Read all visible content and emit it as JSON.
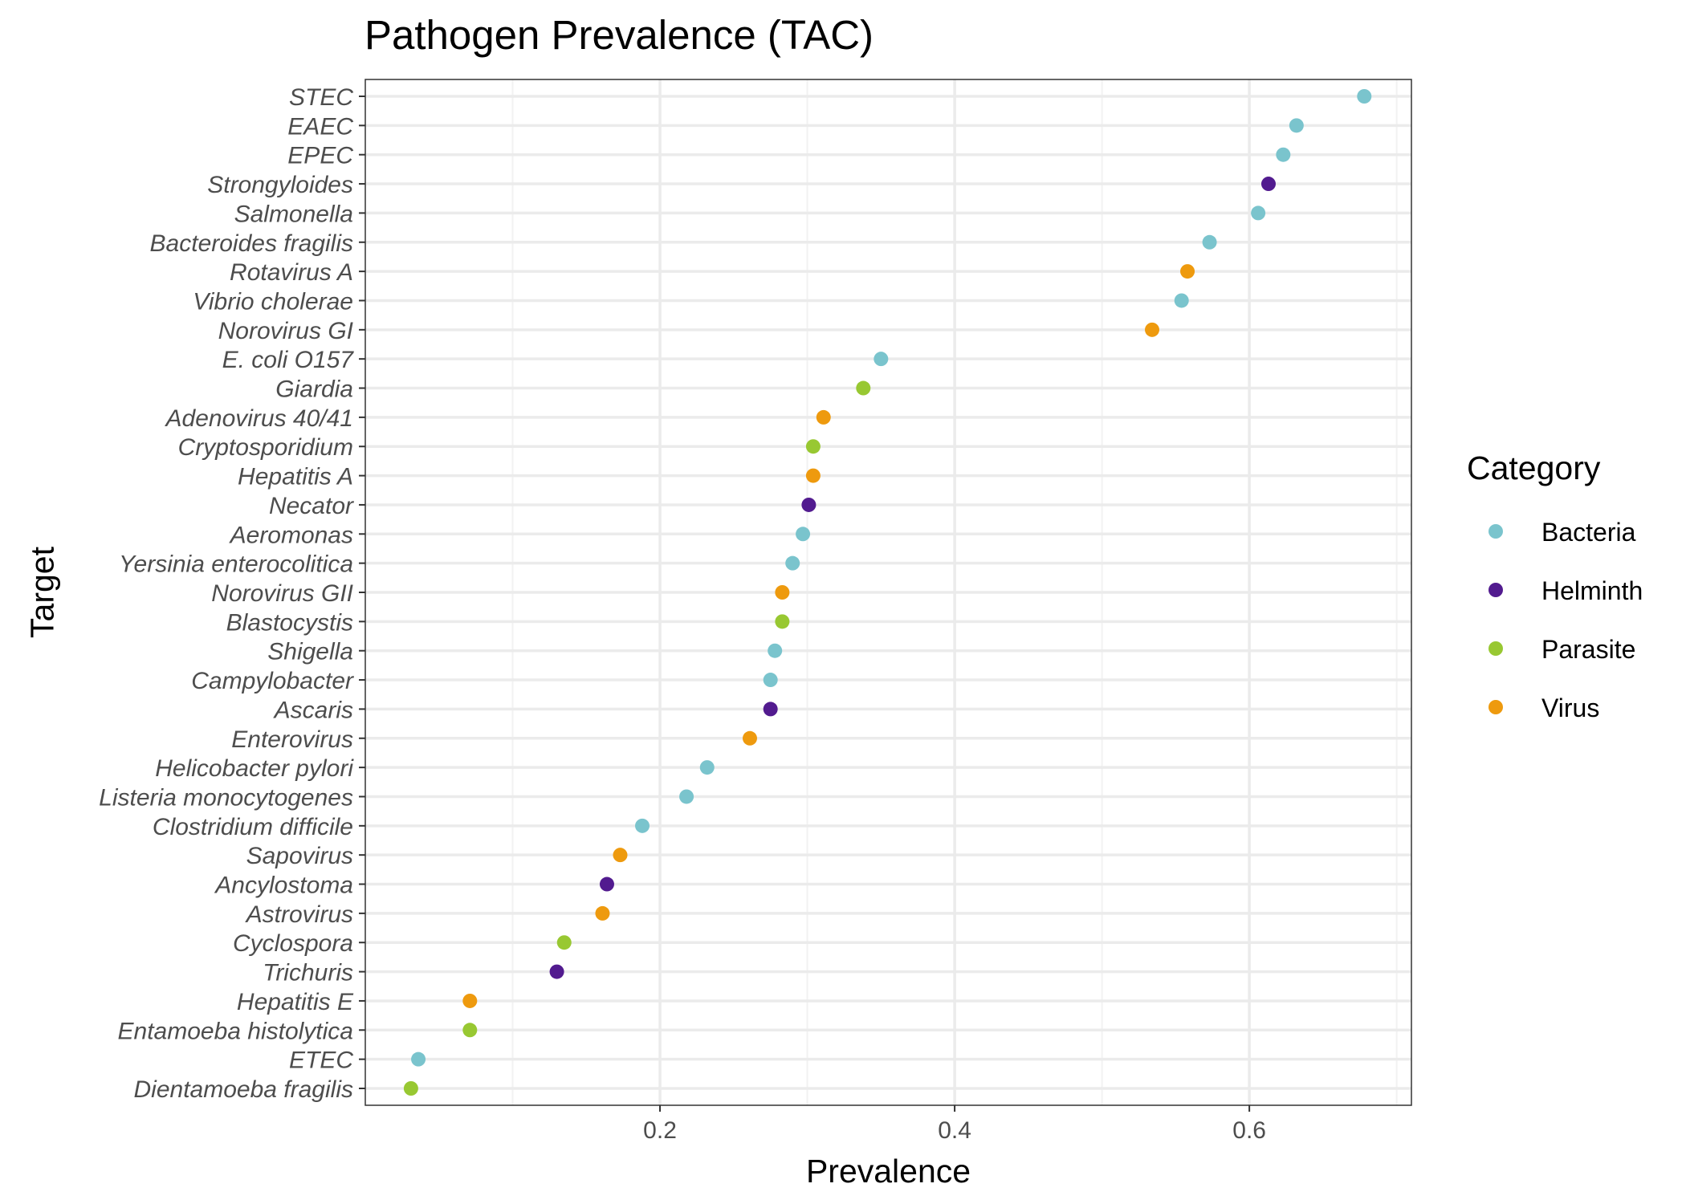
{
  "chart_data": {
    "type": "scatter",
    "title": "Pathogen Prevalence (TAC)",
    "xlabel": "Prevalence",
    "ylabel": "Target",
    "xlim": [
      0.0,
      0.71
    ],
    "xticks": [
      0.2,
      0.4,
      0.6
    ],
    "xtick_labels": [
      "0.2",
      "0.4",
      "0.6"
    ],
    "grid": true,
    "legend": {
      "title": "Category",
      "placement": "right",
      "items": [
        {
          "label": "Bacteria",
          "color": "#7ac4cd"
        },
        {
          "label": "Helminth",
          "color": "#521b8f"
        },
        {
          "label": "Parasite",
          "color": "#98c832"
        },
        {
          "label": "Virus",
          "color": "#ee9a0e"
        }
      ]
    },
    "points": [
      {
        "target": "STEC",
        "prevalence": 0.678,
        "category": "Bacteria"
      },
      {
        "target": "EAEC",
        "prevalence": 0.632,
        "category": "Bacteria"
      },
      {
        "target": "EPEC",
        "prevalence": 0.623,
        "category": "Bacteria"
      },
      {
        "target": "Strongyloides",
        "prevalence": 0.613,
        "category": "Helminth"
      },
      {
        "target": "Salmonella",
        "prevalence": 0.606,
        "category": "Bacteria"
      },
      {
        "target": "Bacteroides fragilis",
        "prevalence": 0.573,
        "category": "Bacteria"
      },
      {
        "target": "Rotavirus A",
        "prevalence": 0.558,
        "category": "Virus"
      },
      {
        "target": "Vibrio cholerae",
        "prevalence": 0.554,
        "category": "Bacteria"
      },
      {
        "target": "Norovirus GI",
        "prevalence": 0.534,
        "category": "Virus"
      },
      {
        "target": "E. coli O157",
        "prevalence": 0.35,
        "category": "Bacteria"
      },
      {
        "target": "Giardia",
        "prevalence": 0.338,
        "category": "Parasite"
      },
      {
        "target": "Adenovirus 40/41",
        "prevalence": 0.311,
        "category": "Virus"
      },
      {
        "target": "Cryptosporidium",
        "prevalence": 0.304,
        "category": "Parasite"
      },
      {
        "target": "Hepatitis A",
        "prevalence": 0.304,
        "category": "Virus"
      },
      {
        "target": "Necator",
        "prevalence": 0.301,
        "category": "Helminth"
      },
      {
        "target": "Aeromonas",
        "prevalence": 0.297,
        "category": "Bacteria"
      },
      {
        "target": "Yersinia enterocolitica",
        "prevalence": 0.29,
        "category": "Bacteria"
      },
      {
        "target": "Norovirus GII",
        "prevalence": 0.283,
        "category": "Virus"
      },
      {
        "target": "Blastocystis",
        "prevalence": 0.283,
        "category": "Parasite"
      },
      {
        "target": "Shigella",
        "prevalence": 0.278,
        "category": "Bacteria"
      },
      {
        "target": "Campylobacter",
        "prevalence": 0.275,
        "category": "Bacteria"
      },
      {
        "target": "Ascaris",
        "prevalence": 0.275,
        "category": "Helminth"
      },
      {
        "target": "Enterovirus",
        "prevalence": 0.261,
        "category": "Virus"
      },
      {
        "target": "Helicobacter pylori",
        "prevalence": 0.232,
        "category": "Bacteria"
      },
      {
        "target": "Listeria monocytogenes",
        "prevalence": 0.218,
        "category": "Bacteria"
      },
      {
        "target": "Clostridium difficile",
        "prevalence": 0.188,
        "category": "Bacteria"
      },
      {
        "target": "Sapovirus",
        "prevalence": 0.173,
        "category": "Virus"
      },
      {
        "target": "Ancylostoma",
        "prevalence": 0.164,
        "category": "Helminth"
      },
      {
        "target": "Astrovirus",
        "prevalence": 0.161,
        "category": "Virus"
      },
      {
        "target": "Cyclospora",
        "prevalence": 0.135,
        "category": "Parasite"
      },
      {
        "target": "Trichuris",
        "prevalence": 0.13,
        "category": "Helminth"
      },
      {
        "target": "Hepatitis E",
        "prevalence": 0.071,
        "category": "Virus"
      },
      {
        "target": "Entamoeba histolytica",
        "prevalence": 0.071,
        "category": "Parasite"
      },
      {
        "target": "ETEC",
        "prevalence": 0.036,
        "category": "Bacteria"
      },
      {
        "target": "Dientamoeba fragilis",
        "prevalence": 0.031,
        "category": "Parasite"
      }
    ]
  }
}
